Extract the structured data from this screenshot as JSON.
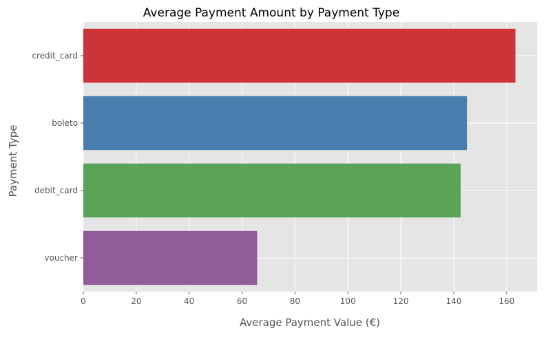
{
  "chart_data": {
    "type": "bar",
    "orientation": "horizontal",
    "title": "Average Payment Amount by Payment Type",
    "xlabel": "Average Payment Value (€)",
    "ylabel": "Payment Type",
    "categories": [
      "credit_card",
      "boleto",
      "debit_card",
      "voucher"
    ],
    "values": [
      163.3,
      145.0,
      142.6,
      65.7
    ],
    "colors": [
      "#cd3337",
      "#487fae",
      "#5ba357",
      "#925b99"
    ],
    "xlim": [
      0,
      171.5
    ],
    "xticks": [
      0,
      20,
      40,
      60,
      80,
      100,
      120,
      140,
      160
    ],
    "grid": true,
    "background": "#e5e5e5",
    "gridcolor": "#ffffff"
  }
}
